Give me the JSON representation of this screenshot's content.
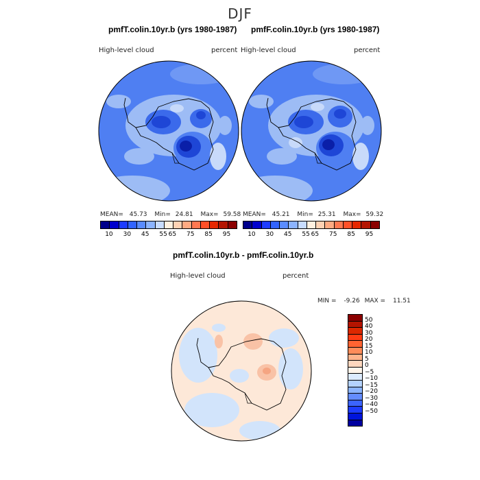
{
  "title": "DJF",
  "panels": [
    {
      "title": "pmfT.colin.10yr.b (yrs 1980-1987)",
      "variable": "High-level cloud",
      "units": "percent",
      "mean_label": "MEAN=",
      "mean": "45.73",
      "min_label": "Min=",
      "min": "24.81",
      "max_label": "Max=",
      "max": "59.58"
    },
    {
      "title": "pmfF.colin.10yr.b (yrs 1980-1987)",
      "variable": "High-level cloud",
      "units": "percent",
      "mean_label": "MEAN=",
      "mean": "45.21",
      "min_label": "Min=",
      "min": "25.31",
      "max_label": "Max=",
      "max": "59.32"
    }
  ],
  "abs_colorbar": {
    "colors": [
      "#00008b",
      "#0000cd",
      "#1e3cff",
      "#3264ff",
      "#5a8cff",
      "#8cb4ff",
      "#c8dcff",
      "#fff0e0",
      "#ffd2b4",
      "#ffaa82",
      "#ff7850",
      "#ff5028",
      "#e62800",
      "#b41400",
      "#8b0000"
    ],
    "tick_labels": [
      "10",
      "30",
      "45",
      "55",
      "65",
      "75",
      "85",
      "95"
    ]
  },
  "diff_panel": {
    "title": "pmfT.colin.10yr.b - pmfF.colin.10yr.b",
    "variable": "High-level cloud",
    "units": "percent",
    "min_label": "MIN =",
    "min": "-9.26",
    "max_label": "MAX =",
    "max": "11.51"
  },
  "diff_colorbar": {
    "colors_top_to_bottom": [
      "#8b0000",
      "#b41400",
      "#dc2800",
      "#ff3c14",
      "#ff6432",
      "#ff8c5a",
      "#ffb48c",
      "#ffd7be",
      "#fff5eb",
      "#dcebff",
      "#b4d2ff",
      "#8cb4ff",
      "#648cff",
      "#3c64ff",
      "#1e3cff",
      "#0014dc",
      "#0000a0"
    ],
    "tick_labels": [
      "50",
      "40",
      "30",
      "20",
      "15",
      "10",
      "5",
      "0",
      "−5",
      "−10",
      "−15",
      "−20",
      "−30",
      "−40",
      "−50"
    ]
  },
  "colors": {
    "ocean_blue": "#4f7ff2",
    "light_blue": "#9dbcf5",
    "pale_blue": "#c8dafa",
    "dark_blue": "#1e46d6",
    "diff_background": "#fde8d8",
    "diff_blue": "#d2e4fb",
    "diff_orange": "#f9c2a6"
  }
}
